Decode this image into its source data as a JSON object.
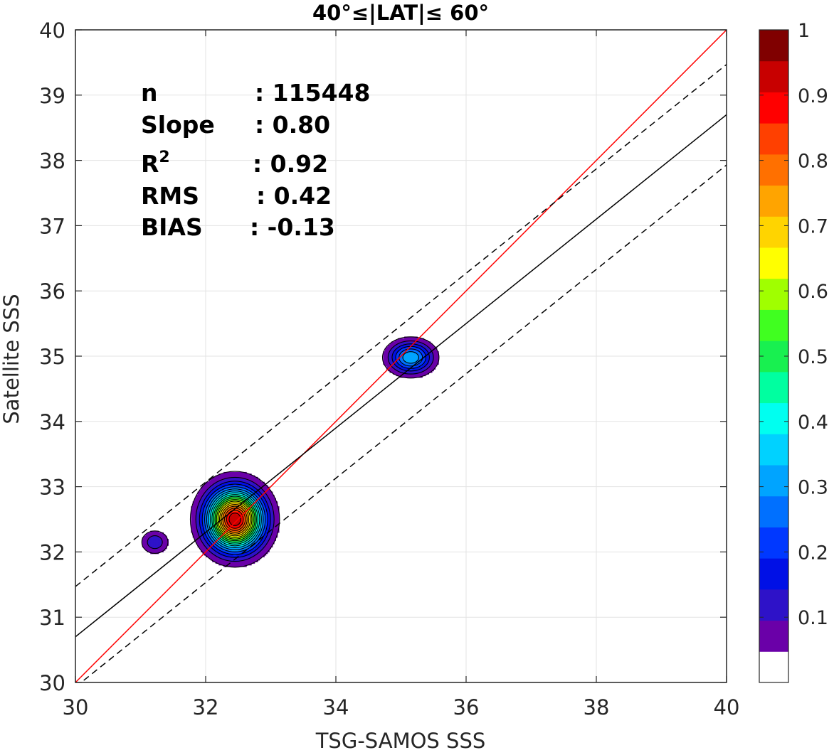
{
  "chart_data": {
    "type": "contour",
    "title": "40°≤|LAT|≤ 60°",
    "xlabel": "TSG-SAMOS SSS",
    "ylabel": "Satellite SSS",
    "xlim": [
      30,
      40
    ],
    "ylim": [
      30,
      40
    ],
    "xticks": [
      "30",
      "32",
      "34",
      "36",
      "38",
      "40"
    ],
    "yticks": [
      "30",
      "31",
      "32",
      "33",
      "34",
      "35",
      "36",
      "37",
      "38",
      "39",
      "40"
    ],
    "grid": true,
    "stats": [
      {
        "label": "n",
        "value": ": 115448"
      },
      {
        "label": "Slope",
        "value": ": 0.80"
      },
      {
        "label": "R",
        "sup": "2",
        "value": ": 0.92"
      },
      {
        "label": "RMS",
        "value": ": 0.42"
      },
      {
        "label": "BIAS",
        "value": ": -0.13"
      }
    ],
    "lines": [
      {
        "role": "one-to-one",
        "color": "#ff0000",
        "style": "solid",
        "slope": 1.0,
        "intercept": 0.0
      },
      {
        "role": "regression",
        "color": "#000000",
        "style": "solid",
        "slope": 0.8,
        "intercept": 6.7
      },
      {
        "role": "regression-plus-offset",
        "color": "#000000",
        "style": "dashed",
        "slope": 0.8,
        "intercept": 7.47
      },
      {
        "role": "regression-minus-offset",
        "color": "#000000",
        "style": "dashed",
        "slope": 0.8,
        "intercept": 5.93
      }
    ],
    "density_peaks": [
      {
        "x": 32.45,
        "y": 32.5,
        "peak": 1.0,
        "sx": 0.28,
        "sy": 0.3
      },
      {
        "x": 35.15,
        "y": 34.98,
        "peak": 0.35,
        "sx": 0.22,
        "sy": 0.16
      },
      {
        "x": 31.22,
        "y": 32.15,
        "peak": 0.14,
        "sx": 0.14,
        "sy": 0.12
      }
    ],
    "colorbar": {
      "ticks": [
        "0.1",
        "0.2",
        "0.3",
        "0.4",
        "0.5",
        "0.6",
        "0.7",
        "0.8",
        "0.9",
        "1"
      ],
      "levels": [
        0,
        0.05,
        0.1,
        0.15,
        0.2,
        0.25,
        0.3,
        0.35,
        0.4,
        0.45,
        0.5,
        0.55,
        0.6,
        0.65,
        0.7,
        0.75,
        0.8,
        0.85,
        0.9,
        0.95,
        1
      ],
      "colors": [
        "#ffffff",
        "#6a00a8",
        "#2e12c8",
        "#0010e6",
        "#0038ff",
        "#0070ff",
        "#00a4ff",
        "#00d2ff",
        "#00fff0",
        "#00ffa0",
        "#18f050",
        "#40ff20",
        "#a0ff00",
        "#ffff00",
        "#ffd400",
        "#ffa400",
        "#ff7000",
        "#ff4000",
        "#ff0000",
        "#c80000",
        "#800000"
      ]
    }
  }
}
